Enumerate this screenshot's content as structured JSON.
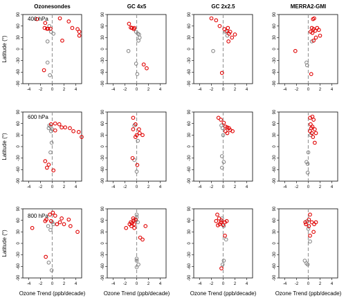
{
  "figure": {
    "column_titles": [
      "Ozonesondes",
      "GC 4x5",
      "GC 2x2.5",
      "MERRA2-GMI"
    ],
    "row_labels": [
      "400 hPa",
      "600 hPa",
      "800 hPa"
    ],
    "ylabel": "Latitude (°)",
    "xlabel": "Ozone Trend (ppb/decade)",
    "significant_color": "#e00000",
    "nonsignificant_color": "#808080"
  },
  "chart_data": {
    "type": "scatter",
    "xlim": [
      -5,
      5
    ],
    "ylim": [
      -90,
      90
    ],
    "xticks": [
      -4,
      -2,
      0,
      2,
      4
    ],
    "yticks": [
      -90,
      -60,
      -30,
      0,
      30,
      60,
      90
    ],
    "xtick_labels": [
      "-4",
      "-2",
      "0",
      "2",
      "4"
    ],
    "ytick_labels": [
      "-90",
      "-60",
      "-30",
      "0",
      "30",
      "60",
      "90"
    ],
    "legend": "none",
    "grid": false,
    "panels": [
      {
        "row": 0,
        "col": 0,
        "red": [
          [
            -2.6,
            78
          ],
          [
            -1.2,
            68
          ],
          [
            -1.3,
            55
          ],
          [
            -0.9,
            53
          ],
          [
            -0.7,
            53
          ],
          [
            -0.3,
            53
          ],
          [
            1.3,
            80
          ],
          [
            2.8,
            72
          ],
          [
            3.4,
            55
          ],
          [
            4.3,
            52
          ],
          [
            4.6,
            45
          ],
          [
            1.7,
            22
          ],
          [
            4.6,
            35
          ],
          [
            -1.4,
            -55
          ]
        ],
        "gray": [
          [
            -0.5,
            60
          ],
          [
            -0.2,
            45
          ],
          [
            0.2,
            40
          ],
          [
            -0.8,
            20
          ],
          [
            -0.8,
            -35
          ],
          [
            -0.4,
            -68
          ]
        ]
      },
      {
        "row": 0,
        "col": 1,
        "red": [
          [
            -1.3,
            66
          ],
          [
            -1.0,
            56
          ],
          [
            -0.8,
            55
          ],
          [
            -0.4,
            55
          ],
          [
            -0.5,
            52
          ],
          [
            1.7,
            -50
          ],
          [
            1.2,
            -40
          ]
        ],
        "gray": [
          [
            -0.1,
            45
          ],
          [
            0.2,
            40
          ],
          [
            0.4,
            38
          ],
          [
            0.5,
            30
          ],
          [
            0.3,
            22
          ],
          [
            -1.4,
            -5
          ],
          [
            -0.1,
            -38
          ],
          [
            0.1,
            -65
          ]
        ]
      },
      {
        "row": 0,
        "col": 2,
        "red": [
          [
            -2.0,
            80
          ],
          [
            -1.2,
            75
          ],
          [
            -0.6,
            60
          ],
          [
            0.2,
            52
          ],
          [
            0.8,
            55
          ],
          [
            0.6,
            47
          ],
          [
            1.2,
            45
          ],
          [
            1.0,
            40
          ],
          [
            1.5,
            30
          ],
          [
            2.0,
            38
          ],
          [
            0.9,
            20
          ],
          [
            -0.2,
            -62
          ]
        ],
        "gray": [
          [
            0.4,
            45
          ],
          [
            0.7,
            35
          ],
          [
            -1.7,
            -5
          ]
        ]
      },
      {
        "row": 0,
        "col": 3,
        "red": [
          [
            1.0,
            80
          ],
          [
            0.8,
            78
          ],
          [
            0.6,
            55
          ],
          [
            0.9,
            52
          ],
          [
            1.2,
            48
          ],
          [
            1.5,
            55
          ],
          [
            1.8,
            50
          ],
          [
            0.4,
            45
          ],
          [
            0.7,
            42
          ],
          [
            1.3,
            30
          ],
          [
            2.0,
            35
          ],
          [
            0.9,
            22
          ],
          [
            -2.2,
            -5
          ],
          [
            0.5,
            -65
          ]
        ],
        "gray": [
          [
            0.6,
            20
          ],
          [
            -0.3,
            -35
          ],
          [
            -0.2,
            -42
          ]
        ]
      },
      {
        "row": 1,
        "col": 0,
        "red": [
          [
            -0.2,
            58
          ],
          [
            0.5,
            60
          ],
          [
            1.2,
            58
          ],
          [
            1.6,
            50
          ],
          [
            2.2,
            50
          ],
          [
            3.0,
            48
          ],
          [
            3.6,
            40
          ],
          [
            4.5,
            38
          ],
          [
            5.0,
            25
          ],
          [
            0.5,
            42
          ],
          [
            -1.2,
            -38
          ],
          [
            -0.9,
            -55
          ],
          [
            -0.6,
            -47
          ],
          [
            0.2,
            -62
          ]
        ],
        "gray": [
          [
            -0.5,
            55
          ],
          [
            -0.3,
            52
          ],
          [
            -0.6,
            48
          ],
          [
            0.0,
            45
          ],
          [
            -0.2,
            40
          ],
          [
            -0.1,
            10
          ],
          [
            -0.3,
            -15
          ]
        ]
      },
      {
        "row": 1,
        "col": 1,
        "red": [
          [
            -0.6,
            75
          ],
          [
            -0.2,
            58
          ],
          [
            -0.6,
            45
          ],
          [
            0.4,
            45
          ],
          [
            0.5,
            35
          ],
          [
            1.0,
            30
          ],
          [
            -0.2,
            25
          ],
          [
            0.0,
            30
          ],
          [
            -0.7,
            -30
          ],
          [
            0.1,
            -48
          ]
        ],
        "gray": [
          [
            -0.4,
            55
          ],
          [
            0.2,
            15
          ],
          [
            -0.4,
            -35
          ],
          [
            0.0,
            -65
          ]
        ]
      },
      {
        "row": 1,
        "col": 2,
        "red": [
          [
            -0.8,
            75
          ],
          [
            -0.4,
            70
          ],
          [
            0.1,
            62
          ],
          [
            0.4,
            52
          ],
          [
            0.7,
            50
          ],
          [
            1.0,
            48
          ],
          [
            1.2,
            43
          ],
          [
            1.6,
            40
          ],
          [
            0.4,
            40
          ],
          [
            0.7,
            35
          ]
        ],
        "gray": [
          [
            -0.3,
            55
          ],
          [
            -0.1,
            48
          ],
          [
            0.0,
            30
          ],
          [
            -0.2,
            -25
          ],
          [
            0.1,
            -40
          ],
          [
            -0.2,
            -55
          ]
        ]
      },
      {
        "row": 1,
        "col": 3,
        "red": [
          [
            0.3,
            75
          ],
          [
            0.7,
            78
          ],
          [
            0.9,
            70
          ],
          [
            0.4,
            58
          ],
          [
            0.7,
            52
          ],
          [
            0.5,
            48
          ],
          [
            1.1,
            45
          ],
          [
            0.3,
            40
          ],
          [
            0.6,
            35
          ],
          [
            1.3,
            35
          ],
          [
            0.8,
            25
          ],
          [
            1.1,
            10
          ]
        ],
        "gray": [
          [
            0.4,
            30
          ],
          [
            0.0,
            -15
          ],
          [
            -0.3,
            -40
          ],
          [
            -0.1,
            -45
          ],
          [
            -0.1,
            -68
          ]
        ]
      },
      {
        "row": 2,
        "col": 0,
        "red": [
          [
            -0.4,
            75
          ],
          [
            0.1,
            80
          ],
          [
            0.5,
            72
          ],
          [
            -1.0,
            62
          ],
          [
            -1.2,
            58
          ],
          [
            -0.2,
            58
          ],
          [
            0.8,
            50
          ],
          [
            1.3,
            55
          ],
          [
            1.6,
            65
          ],
          [
            2.0,
            50
          ],
          [
            2.8,
            62
          ],
          [
            3.1,
            45
          ],
          [
            4.3,
            30
          ],
          [
            -3.4,
            40
          ],
          [
            -1.1,
            -35
          ]
        ],
        "gray": [
          [
            0.0,
            55
          ],
          [
            -0.7,
            45
          ],
          [
            0.2,
            50
          ],
          [
            -0.3,
            35
          ],
          [
            -0.6,
            -50
          ],
          [
            -0.1,
            -70
          ]
        ]
      },
      {
        "row": 2,
        "col": 1,
        "red": [
          [
            -0.6,
            65
          ],
          [
            -0.5,
            60
          ],
          [
            -0.2,
            62
          ],
          [
            -1.0,
            55
          ],
          [
            -0.8,
            52
          ],
          [
            -0.4,
            50
          ],
          [
            -1.2,
            50
          ],
          [
            -0.9,
            45
          ],
          [
            1.5,
            45
          ],
          [
            0.6,
            15
          ],
          [
            1.0,
            10
          ],
          [
            -1.8,
            40
          ],
          [
            -0.4,
            40
          ]
        ],
        "gray": [
          [
            0.0,
            75
          ],
          [
            0.0,
            68
          ],
          [
            -0.1,
            60
          ],
          [
            0.2,
            55
          ],
          [
            0.0,
            -40
          ],
          [
            0.3,
            -55
          ],
          [
            0.0,
            -45
          ],
          [
            0.0,
            -62
          ]
        ]
      },
      {
        "row": 2,
        "col": 2,
        "red": [
          [
            -1.0,
            75
          ],
          [
            -0.7,
            65
          ],
          [
            -0.3,
            60
          ],
          [
            -1.2,
            58
          ],
          [
            -0.4,
            55
          ],
          [
            0.3,
            55
          ],
          [
            -0.6,
            50
          ],
          [
            -0.9,
            47
          ],
          [
            0.0,
            48
          ],
          [
            0.6,
            58
          ],
          [
            0.3,
            20
          ],
          [
            -0.3,
            -65
          ]
        ],
        "gray": [
          [
            -0.2,
            65
          ],
          [
            0.1,
            45
          ],
          [
            0.5,
            10
          ],
          [
            0.1,
            -45
          ],
          [
            -0.1,
            -55
          ]
        ]
      },
      {
        "row": 2,
        "col": 3,
        "red": [
          [
            0.3,
            75
          ],
          [
            0.1,
            62
          ],
          [
            -0.5,
            55
          ],
          [
            0.6,
            55
          ],
          [
            1.0,
            50
          ],
          [
            -0.4,
            50
          ],
          [
            0.1,
            45
          ],
          [
            0.9,
            30
          ],
          [
            1.3,
            55
          ],
          [
            0.3,
            20
          ]
        ],
        "gray": [
          [
            -0.2,
            58
          ],
          [
            0.0,
            38
          ],
          [
            0.3,
            5
          ],
          [
            -0.6,
            -45
          ],
          [
            -0.1,
            -55
          ],
          [
            -0.3,
            -52
          ]
        ]
      }
    ]
  }
}
